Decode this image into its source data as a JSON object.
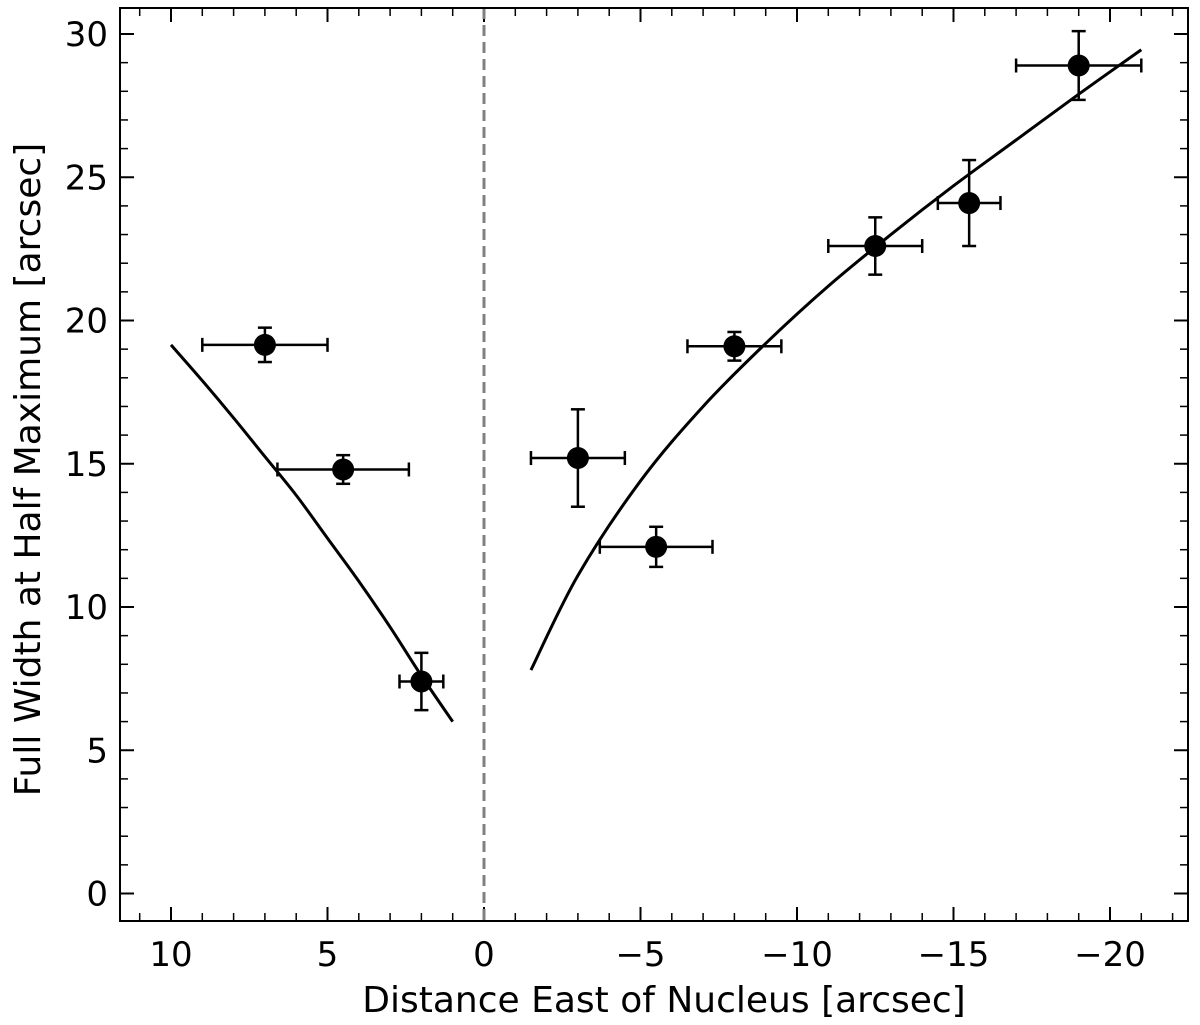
{
  "chart_data": {
    "type": "scatter",
    "title": "",
    "xlabel": "Distance East of Nucleus [arcsec]",
    "ylabel": "Full Width at Half Maximum [arcsec]",
    "xlim": [
      11.2,
      -22.3
    ],
    "ylim": [
      -1,
      31
    ],
    "x_axis_inverted": true,
    "x_ticks": [
      10,
      5,
      0,
      -5,
      -10,
      -15,
      -20
    ],
    "x_tick_labels": [
      "10",
      "5",
      "0",
      "−5",
      "−10",
      "−15",
      "−20"
    ],
    "y_ticks": [
      0,
      5,
      10,
      15,
      20,
      25,
      30
    ],
    "y_tick_labels": [
      "0",
      "5",
      "10",
      "15",
      "20",
      "25",
      "30"
    ],
    "ticks_direction": "in",
    "ticks_on_all_sides": true,
    "grid": false,
    "legend": "none",
    "reference_line": {
      "x": 0,
      "style": "dashed",
      "color": "#808080"
    },
    "points": {
      "x": [
        7.0,
        4.5,
        2.0,
        -3.0,
        -5.5,
        -8.0,
        -12.5,
        -15.5,
        -19.0
      ],
      "y": [
        19.15,
        14.8,
        7.4,
        15.2,
        12.1,
        19.1,
        22.6,
        24.1,
        28.9
      ],
      "x_err_low": [
        2.0,
        2.1,
        0.7,
        1.5,
        1.8,
        1.5,
        1.5,
        1.0,
        2.0
      ],
      "x_err_high": [
        2.0,
        2.1,
        0.7,
        1.5,
        1.8,
        1.5,
        1.5,
        1.0,
        2.0
      ],
      "y_err_low": [
        0.6,
        0.5,
        1.0,
        1.7,
        0.7,
        0.5,
        1.0,
        1.5,
        1.2
      ],
      "y_err_high": [
        0.6,
        0.5,
        1.0,
        1.7,
        0.7,
        0.5,
        1.0,
        1.5,
        1.2
      ],
      "color": "#000000"
    },
    "fit_curves": [
      {
        "x": [
          10.0,
          9.0,
          8.0,
          7.0,
          6.0,
          5.0,
          4.0,
          3.0,
          2.0,
          1.0
        ],
        "y": [
          19.15,
          17.9,
          16.6,
          15.25,
          13.9,
          12.4,
          10.9,
          9.3,
          7.6,
          6.0
        ]
      },
      {
        "x": [
          -1.5,
          -3.0,
          -5.0,
          -7.0,
          -9.0,
          -11.0,
          -13.0,
          -15.0,
          -17.0,
          -19.0,
          -21.0
        ],
        "y": [
          7.8,
          11.1,
          14.4,
          17.0,
          19.2,
          21.2,
          23.0,
          24.7,
          26.3,
          27.9,
          29.45
        ]
      }
    ],
    "colors": {
      "data": "#000000",
      "fit": "#000000",
      "reference": "#808080"
    }
  }
}
